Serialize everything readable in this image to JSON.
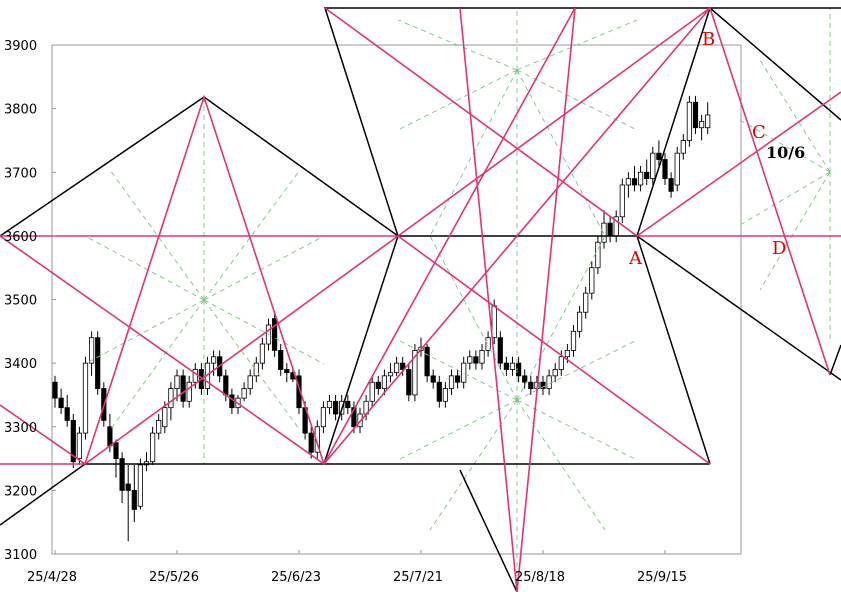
{
  "chart_data": {
    "type": "candlestick",
    "categories": [
      "25/4/28",
      null,
      null,
      null,
      null,
      null,
      null,
      null,
      null,
      null,
      null,
      null,
      null,
      null,
      null,
      null,
      null,
      null,
      null,
      null,
      "25/5/26",
      null,
      null,
      null,
      null,
      null,
      null,
      null,
      null,
      null,
      null,
      null,
      null,
      null,
      null,
      null,
      null,
      null,
      null,
      null,
      "25/6/23",
      null,
      null,
      null,
      null,
      null,
      null,
      null,
      null,
      null,
      null,
      null,
      null,
      null,
      null,
      null,
      null,
      null,
      null,
      null,
      "25/7/21",
      null,
      null,
      null,
      null,
      null,
      null,
      null,
      null,
      null,
      null,
      null,
      null,
      null,
      null,
      null,
      null,
      null,
      null,
      null,
      "25/8/18",
      null,
      null,
      null,
      null,
      null,
      null,
      null,
      null,
      null,
      null,
      null,
      null,
      null,
      null,
      null,
      null,
      null,
      null,
      null,
      "25/9/15",
      null,
      null,
      null,
      null,
      null,
      null,
      null
    ],
    "ohlc": [
      [
        3370,
        3380,
        3330,
        3345
      ],
      [
        3345,
        3360,
        3320,
        3330
      ],
      [
        3330,
        3350,
        3300,
        3310
      ],
      [
        3310,
        3320,
        3235,
        3245
      ],
      [
        3250,
        3300,
        3240,
        3290
      ],
      [
        3290,
        3410,
        3280,
        3400
      ],
      [
        3400,
        3450,
        3380,
        3440
      ],
      [
        3440,
        3450,
        3350,
        3360
      ],
      [
        3360,
        3370,
        3300,
        3310
      ],
      [
        3300,
        3320,
        3260,
        3270
      ],
      [
        3275,
        3280,
        3220,
        3250
      ],
      [
        3250,
        3260,
        3180,
        3200
      ],
      [
        3210,
        3240,
        3120,
        3200
      ],
      [
        3200,
        3240,
        3150,
        3170
      ],
      [
        3175,
        3250,
        3170,
        3240
      ],
      [
        3240,
        3260,
        3230,
        3245
      ],
      [
        3245,
        3300,
        3240,
        3290
      ],
      [
        3290,
        3320,
        3280,
        3310
      ],
      [
        3300,
        3340,
        3290,
        3330
      ],
      [
        3330,
        3370,
        3310,
        3360
      ],
      [
        3360,
        3390,
        3340,
        3380
      ],
      [
        3380,
        3390,
        3330,
        3340
      ],
      [
        3340,
        3380,
        3330,
        3370
      ],
      [
        3370,
        3400,
        3360,
        3390
      ],
      [
        3390,
        3400,
        3350,
        3360
      ],
      [
        3360,
        3410,
        3350,
        3400
      ],
      [
        3400,
        3420,
        3380,
        3410
      ],
      [
        3410,
        3420,
        3370,
        3380
      ],
      [
        3380,
        3390,
        3340,
        3350
      ],
      [
        3350,
        3360,
        3320,
        3330
      ],
      [
        3330,
        3350,
        3320,
        3345
      ],
      [
        3345,
        3370,
        3340,
        3360
      ],
      [
        3360,
        3390,
        3350,
        3380
      ],
      [
        3380,
        3410,
        3370,
        3400
      ],
      [
        3400,
        3440,
        3390,
        3430
      ],
      [
        3430,
        3470,
        3420,
        3460
      ],
      [
        3470,
        3480,
        3410,
        3420
      ],
      [
        3420,
        3430,
        3380,
        3390
      ],
      [
        3390,
        3400,
        3370,
        3385
      ],
      [
        3385,
        3390,
        3370,
        3375
      ],
      [
        3380,
        3390,
        3320,
        3330
      ],
      [
        3330,
        3340,
        3280,
        3290
      ],
      [
        3290,
        3300,
        3250,
        3260
      ],
      [
        3260,
        3310,
        3250,
        3300
      ],
      [
        3300,
        3340,
        3290,
        3330
      ],
      [
        3330,
        3350,
        3320,
        3340
      ],
      [
        3340,
        3350,
        3310,
        3320
      ],
      [
        3320,
        3350,
        3310,
        3340
      ],
      [
        3340,
        3350,
        3320,
        3330
      ],
      [
        3330,
        3340,
        3290,
        3300
      ],
      [
        3300,
        3330,
        3290,
        3320
      ],
      [
        3320,
        3350,
        3310,
        3340
      ],
      [
        3340,
        3380,
        3330,
        3370
      ],
      [
        3370,
        3380,
        3350,
        3360
      ],
      [
        3360,
        3390,
        3350,
        3380
      ],
      [
        3380,
        3400,
        3370,
        3385
      ],
      [
        3385,
        3410,
        3380,
        3400
      ],
      [
        3400,
        3410,
        3380,
        3390
      ],
      [
        3390,
        3400,
        3340,
        3350
      ],
      [
        3350,
        3430,
        3340,
        3420
      ],
      [
        3420,
        3440,
        3410,
        3425
      ],
      [
        3425,
        3430,
        3370,
        3380
      ],
      [
        3380,
        3390,
        3360,
        3370
      ],
      [
        3370,
        3380,
        3330,
        3340
      ],
      [
        3340,
        3370,
        3330,
        3360
      ],
      [
        3360,
        3390,
        3350,
        3380
      ],
      [
        3380,
        3390,
        3360,
        3370
      ],
      [
        3370,
        3410,
        3360,
        3400
      ],
      [
        3400,
        3420,
        3390,
        3410
      ],
      [
        3410,
        3420,
        3390,
        3400
      ],
      [
        3400,
        3430,
        3390,
        3420
      ],
      [
        3420,
        3450,
        3410,
        3440
      ],
      [
        3440,
        3500,
        3430,
        3490
      ],
      [
        3440,
        3450,
        3390,
        3400
      ],
      [
        3400,
        3410,
        3380,
        3390
      ],
      [
        3390,
        3410,
        3380,
        3400
      ],
      [
        3400,
        3410,
        3370,
        3380
      ],
      [
        3380,
        3390,
        3360,
        3370
      ],
      [
        3370,
        3380,
        3350,
        3360
      ],
      [
        3360,
        3380,
        3350,
        3370
      ],
      [
        3370,
        3380,
        3350,
        3360
      ],
      [
        3360,
        3390,
        3350,
        3380
      ],
      [
        3380,
        3400,
        3370,
        3390
      ],
      [
        3390,
        3420,
        3380,
        3410
      ],
      [
        3410,
        3430,
        3400,
        3420
      ],
      [
        3420,
        3460,
        3410,
        3450
      ],
      [
        3450,
        3490,
        3440,
        3480
      ],
      [
        3480,
        3520,
        3470,
        3510
      ],
      [
        3510,
        3560,
        3500,
        3550
      ],
      [
        3550,
        3600,
        3540,
        3590
      ],
      [
        3590,
        3640,
        3580,
        3620
      ],
      [
        3620,
        3630,
        3590,
        3600
      ],
      [
        3600,
        3640,
        3590,
        3630
      ],
      [
        3630,
        3690,
        3620,
        3680
      ],
      [
        3680,
        3700,
        3660,
        3690
      ],
      [
        3690,
        3710,
        3670,
        3680
      ],
      [
        3680,
        3710,
        3670,
        3700
      ],
      [
        3700,
        3720,
        3680,
        3690
      ],
      [
        3690,
        3740,
        3680,
        3730
      ],
      [
        3730,
        3750,
        3710,
        3720
      ],
      [
        3720,
        3730,
        3680,
        3690
      ],
      [
        3690,
        3700,
        3660,
        3670
      ],
      [
        3680,
        3740,
        3670,
        3730
      ],
      [
        3730,
        3760,
        3720,
        3750
      ],
      [
        3750,
        3820,
        3740,
        3810
      ],
      [
        3810,
        3820,
        3760,
        3770
      ],
      [
        3770,
        3790,
        3750,
        3780
      ],
      [
        3770,
        3810,
        3760,
        3790
      ]
    ],
    "up_color": "#ffffff",
    "down_color": "#000000",
    "ylim": [
      3100,
      3900
    ],
    "yticks": [
      3100,
      3200,
      3300,
      3400,
      3500,
      3600,
      3700,
      3800,
      3900
    ],
    "annotations": {
      "A": "A",
      "B": "B",
      "C": "C",
      "D": "D",
      "date": "10/6"
    }
  }
}
